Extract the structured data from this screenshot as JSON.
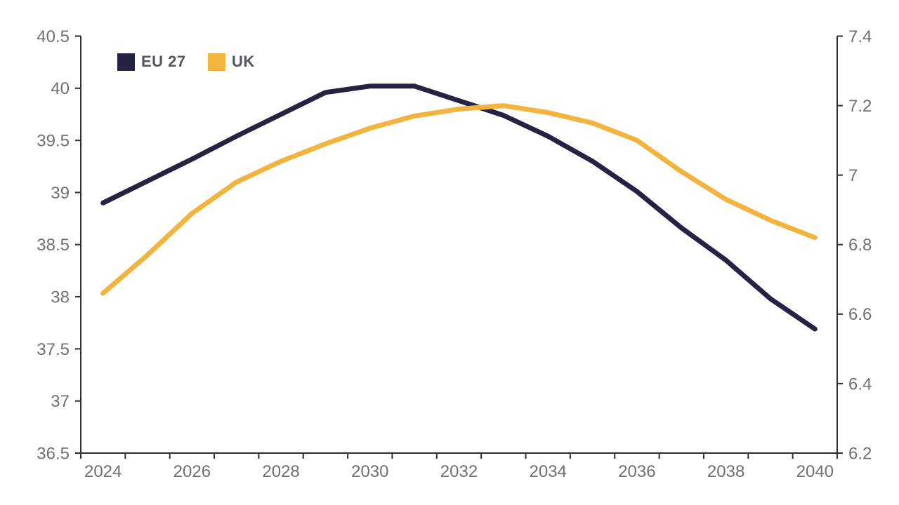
{
  "styles": {
    "background": "#ffffff",
    "axis_line_color": "#2e2e2e",
    "tick_label_color": "#707070",
    "legend_text_color": "#55565a",
    "eu27_color": "#262243",
    "uk_color": "#f1b53f"
  },
  "chart_data": {
    "type": "line",
    "title": "",
    "grid": false,
    "legend_position": "top-left",
    "x": [
      2024,
      2025,
      2026,
      2027,
      2028,
      2029,
      2030,
      2031,
      2032,
      2033,
      2034,
      2035,
      2036,
      2037,
      2038,
      2039,
      2040
    ],
    "x_axis_labels": [
      "2024",
      "2026",
      "2028",
      "2030",
      "2032",
      "2034",
      "2036",
      "2038",
      "2040"
    ],
    "left_axis": {
      "min": 36.5,
      "max": 40.5,
      "step": 0.5,
      "tick_labels": [
        "40.5",
        "40",
        "39.5",
        "39",
        "38.5",
        "38",
        "37.5",
        "37",
        "36.5"
      ]
    },
    "right_axis": {
      "min": 6.2,
      "max": 7.4,
      "step": 0.2,
      "tick_labels": [
        "7.4",
        "7.2",
        "7",
        "6.8",
        "6.6",
        "6.4",
        "6.2"
      ]
    },
    "series": [
      {
        "name": "EU 27",
        "axis": "left",
        "color": "#262243",
        "values": [
          38.9,
          39.11,
          39.32,
          39.54,
          39.75,
          39.96,
          40.02,
          40.02,
          39.88,
          39.74,
          39.54,
          39.3,
          39.01,
          38.66,
          38.35,
          37.98,
          37.69
        ]
      },
      {
        "name": "UK",
        "axis": "right",
        "color": "#f1b53f",
        "values": [
          6.66,
          6.77,
          6.89,
          6.98,
          7.04,
          7.09,
          7.135,
          7.17,
          7.19,
          7.2,
          7.18,
          7.15,
          7.1,
          7.01,
          6.93,
          6.87,
          6.82
        ]
      }
    ]
  }
}
